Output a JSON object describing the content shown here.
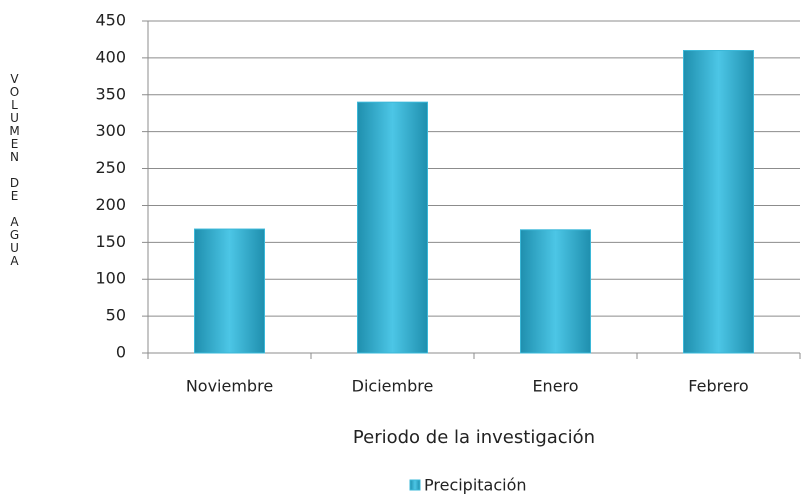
{
  "chart_data": {
    "type": "bar",
    "y_label": "VOLUMEN DE AGUA",
    "x_label": "Periodo de la investigación",
    "categories": [
      "Noviembre",
      "Diciembre",
      "Enero",
      "Febrero"
    ],
    "series": [
      {
        "name": "Precipitación",
        "color": "#3bb8d8",
        "values": [
          168,
          340,
          167,
          410
        ]
      }
    ],
    "ylim": [
      0,
      450
    ],
    "yticks": [
      0,
      50,
      100,
      150,
      200,
      250,
      300,
      350,
      400,
      450
    ],
    "grid": true,
    "legend": "bottom"
  }
}
